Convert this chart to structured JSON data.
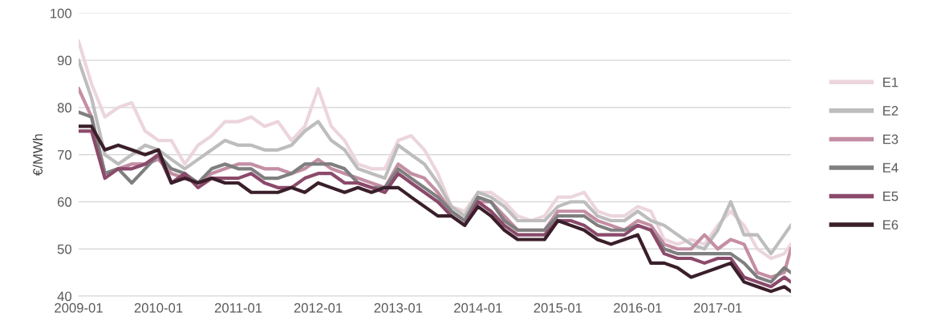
{
  "chart_data": {
    "type": "line",
    "ylabel": "€/MWh",
    "x": [
      "2009-01",
      "2009-03",
      "2009-05",
      "2009-07",
      "2009-09",
      "2009-11",
      "2010-01",
      "2010-03",
      "2010-05",
      "2010-07",
      "2010-09",
      "2010-11",
      "2011-01",
      "2011-03",
      "2011-05",
      "2011-07",
      "2011-09",
      "2011-11",
      "2012-01",
      "2012-03",
      "2012-05",
      "2012-07",
      "2012-09",
      "2012-11",
      "2013-01",
      "2013-03",
      "2013-05",
      "2013-07",
      "2013-09",
      "2013-11",
      "2014-01",
      "2014-03",
      "2014-05",
      "2014-07",
      "2014-09",
      "2014-11",
      "2015-01",
      "2015-03",
      "2015-05",
      "2015-07",
      "2015-09",
      "2015-11",
      "2016-01",
      "2016-03",
      "2016-05",
      "2016-07",
      "2016-09",
      "2016-11",
      "2017-01",
      "2017-03",
      "2017-05",
      "2017-07",
      "2017-09",
      "2017-11",
      "2017-12"
    ],
    "series": [
      {
        "name": "E1",
        "color": "#ecd5dc",
        "values": [
          94,
          85,
          78,
          80,
          81,
          75,
          73,
          73,
          68,
          72,
          74,
          77,
          77,
          78,
          76,
          77,
          73,
          76,
          84,
          76,
          73,
          68,
          67,
          67,
          73,
          74,
          71,
          66,
          59,
          58,
          62,
          62,
          60,
          57,
          56,
          57,
          61,
          61,
          62,
          58,
          57,
          57,
          59,
          58,
          52,
          51,
          52,
          51,
          55,
          58,
          55,
          50,
          48,
          49,
          51
        ]
      },
      {
        "name": "E2",
        "color": "#bdbdbd",
        "values": [
          90,
          82,
          70,
          68,
          70,
          72,
          71,
          69,
          67,
          69,
          71,
          73,
          72,
          72,
          71,
          71,
          72,
          75,
          77,
          73,
          71,
          67,
          66,
          65,
          72,
          70,
          68,
          64,
          59,
          57,
          62,
          61,
          59,
          56,
          56,
          56,
          59,
          60,
          60,
          57,
          56,
          56,
          58,
          56,
          55,
          53,
          51,
          50,
          54,
          60,
          53,
          53,
          49,
          53,
          55
        ]
      },
      {
        "name": "E3",
        "color": "#c48ea4",
        "values": [
          84,
          78,
          66,
          67,
          68,
          68,
          69,
          66,
          65,
          64,
          66,
          67,
          68,
          68,
          67,
          67,
          66,
          67,
          69,
          67,
          66,
          65,
          64,
          63,
          68,
          66,
          65,
          62,
          58,
          56,
          60,
          60,
          57,
          54,
          54,
          54,
          58,
          58,
          58,
          56,
          55,
          54,
          56,
          55,
          51,
          50,
          50,
          53,
          50,
          52,
          51,
          45,
          44,
          45,
          50
        ]
      },
      {
        "name": "E4",
        "color": "#7f7f7f",
        "values": [
          79,
          78,
          66,
          67,
          64,
          67,
          70,
          67,
          66,
          64,
          67,
          68,
          67,
          67,
          65,
          65,
          66,
          68,
          68,
          68,
          67,
          64,
          63,
          63,
          67,
          65,
          63,
          61,
          58,
          56,
          61,
          60,
          56,
          54,
          54,
          54,
          57,
          57,
          57,
          55,
          54,
          54,
          55,
          54,
          50,
          49,
          49,
          49,
          49,
          49,
          47,
          44,
          43,
          46,
          45
        ]
      },
      {
        "name": "E5",
        "color": "#8b4a6b",
        "values": [
          75,
          75,
          65,
          67,
          67,
          68,
          70,
          64,
          66,
          63,
          65,
          65,
          65,
          66,
          64,
          63,
          63,
          65,
          66,
          66,
          64,
          64,
          63,
          62,
          66,
          64,
          62,
          60,
          57,
          55,
          60,
          58,
          55,
          53,
          53,
          53,
          56,
          56,
          55,
          53,
          53,
          53,
          55,
          54,
          49,
          48,
          48,
          47,
          48,
          48,
          44,
          43,
          42,
          44,
          43
        ]
      },
      {
        "name": "E6",
        "color": "#3a1f2b",
        "values": [
          76,
          76,
          71,
          72,
          71,
          70,
          71,
          64,
          65,
          64,
          65,
          64,
          64,
          62,
          62,
          62,
          63,
          62,
          64,
          63,
          62,
          63,
          62,
          63,
          63,
          61,
          59,
          57,
          57,
          55,
          59,
          57,
          54,
          52,
          52,
          52,
          56,
          55,
          54,
          52,
          51,
          52,
          53,
          47,
          47,
          46,
          44,
          45,
          46,
          47,
          43,
          42,
          41,
          42,
          41
        ]
      }
    ],
    "xlim": [
      "2009-01",
      "2017-12"
    ],
    "xticks": [
      "2009-01",
      "2010-01",
      "2011-01",
      "2012-01",
      "2013-01",
      "2014-01",
      "2015-01",
      "2016-01",
      "2017-01"
    ],
    "ylim": [
      40,
      100
    ],
    "yticks": [
      40,
      50,
      60,
      70,
      80,
      90,
      100
    ],
    "grid": "y",
    "legend": "right",
    "marker": "none",
    "line_style": "solid"
  }
}
